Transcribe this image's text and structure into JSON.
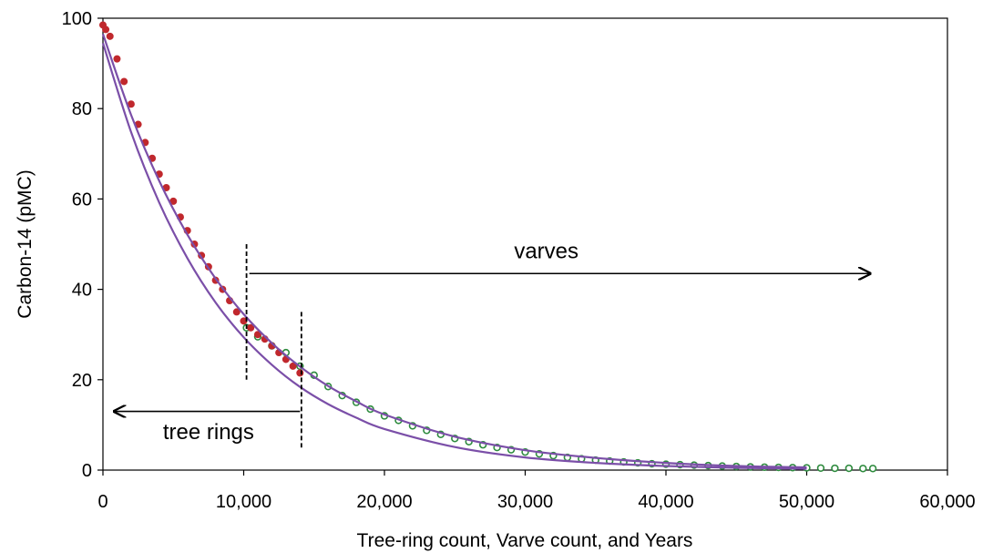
{
  "chart_data": {
    "type": "scatter",
    "xlabel": "Tree-ring count, Varve count, and Years",
    "ylabel": "Carbon-14  (pMC)",
    "xlim": [
      0,
      60000
    ],
    "ylim": [
      0,
      100
    ],
    "x_ticks": [
      0,
      10000,
      20000,
      30000,
      40000,
      50000,
      60000
    ],
    "x_tick_labels": [
      "0",
      "10,000",
      "20,000",
      "30,000",
      "40,000",
      "50,000",
      "60,000"
    ],
    "y_ticks": [
      0,
      20,
      40,
      60,
      80,
      100
    ],
    "y_tick_labels": [
      "0",
      "20",
      "40",
      "60",
      "80",
      "100"
    ],
    "grid": false,
    "colors": {
      "tree_rings_points": "#c0282d",
      "varves_points": "#2e8b3e",
      "decay_curves": "#7b4fa8",
      "annotations": "#000000"
    },
    "series": [
      {
        "marker": "filled-circle",
        "x": [
          0,
          200,
          500,
          1000,
          1500,
          2000,
          2500,
          3000,
          3500,
          4000,
          4500,
          5000,
          5500,
          6000,
          6500,
          7000,
          7500,
          8000,
          8500,
          9000,
          9500,
          10000,
          10500,
          11000,
          11500,
          12000,
          12500,
          13000,
          13500,
          14000
        ],
        "y": [
          98.5,
          97.5,
          96,
          91,
          86,
          81,
          76.5,
          72.5,
          69,
          65.5,
          62.5,
          59.5,
          56,
          53,
          50,
          47.5,
          45,
          42,
          40,
          37.5,
          35,
          33,
          31.5,
          30,
          29,
          27.5,
          26,
          24.5,
          23,
          21.5
        ]
      },
      {
        "marker": "open-circle",
        "x": [
          10200,
          11000,
          12000,
          13000,
          14000,
          15000,
          16000,
          17000,
          18000,
          19000,
          20000,
          21000,
          22000,
          23000,
          24000,
          25000,
          26000,
          27000,
          28000,
          29000,
          30000,
          31000,
          32000,
          33000,
          34000,
          35000,
          36000,
          37000,
          38000,
          39000,
          40000,
          41000,
          42000,
          43000,
          44000,
          45000,
          46000,
          47000,
          48000,
          49000,
          50000,
          51000,
          52000,
          53000,
          54000,
          54700
        ],
        "y": [
          31.5,
          29.5,
          27.5,
          26,
          23,
          21,
          18.5,
          16.5,
          15,
          13.5,
          12,
          11,
          9.8,
          8.8,
          7.9,
          7,
          6.3,
          5.6,
          5,
          4.5,
          4,
          3.6,
          3.2,
          2.8,
          2.5,
          2.2,
          2,
          1.8,
          1.6,
          1.4,
          1.3,
          1.2,
          1.1,
          1,
          0.9,
          0.8,
          0.7,
          0.65,
          0.6,
          0.55,
          0.5,
          0.45,
          0.4,
          0.4,
          0.35,
          0.35
        ]
      },
      {
        "style": "curve",
        "x": [
          0,
          2000,
          4000,
          6000,
          8000,
          10000,
          12000,
          14000,
          16000,
          18000,
          20000,
          25000,
          30000,
          35000,
          40000,
          45000,
          50000
        ],
        "y": [
          96.5,
          78.6,
          64,
          52.1,
          42.4,
          34.5,
          28.1,
          22.9,
          18.6,
          15.2,
          12.3,
          7.4,
          4.4,
          2.7,
          1.6,
          0.9,
          0.6
        ]
      },
      {
        "style": "curve",
        "x": [
          0,
          2000,
          4000,
          6000,
          8000,
          10000,
          12000,
          14000,
          16000,
          18000,
          20000,
          25000,
          30000,
          35000,
          40000,
          45000,
          50000
        ],
        "y": [
          94.5,
          74.8,
          59.2,
          46.9,
          37.1,
          29.4,
          23.3,
          18.4,
          14.6,
          11.6,
          9.1,
          5.1,
          2.8,
          1.6,
          0.9,
          0.5,
          0.3
        ]
      }
    ],
    "annotations": [
      {
        "text": "varves",
        "arrow_from_x": 10400,
        "arrow_to_x": 54500,
        "arrow_y": 43.5,
        "label_x": 31500,
        "label_y": 48.5
      },
      {
        "text": "tree rings",
        "arrow_from_x": 14000,
        "arrow_to_x": 800,
        "arrow_y": 13,
        "label_x": 7500,
        "label_y": 8.5
      },
      {
        "dashed_x": 10200,
        "y_from": 20,
        "y_to": 50
      },
      {
        "dashed_x": 14100,
        "y_from": 5,
        "y_to": 35
      }
    ]
  }
}
